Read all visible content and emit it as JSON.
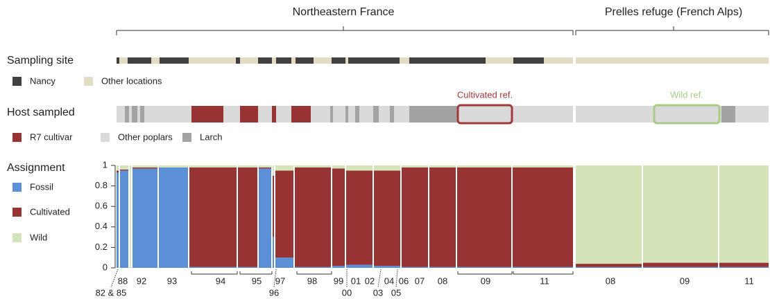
{
  "chart_data": {
    "type": "structure",
    "regions": [
      "Northeastern France",
      "Prelles refuge (French Alps)"
    ],
    "site_track": {
      "label": "Sampling site",
      "categories": [
        {
          "name": "Nancy",
          "color": "#404040"
        },
        {
          "name": "Other locations",
          "color": "#e2dcc5"
        }
      ],
      "segments": [
        [
          {
            "cat": 0,
            "n": 2
          },
          {
            "cat": 1,
            "n": 6
          },
          {
            "cat": 0,
            "n": 17
          },
          {
            "cat": 1,
            "n": 6
          },
          {
            "cat": 0,
            "n": 21
          },
          {
            "cat": 1,
            "n": 34
          },
          {
            "cat": 0,
            "n": 3
          },
          {
            "cat": 1,
            "n": 13
          },
          {
            "cat": 0,
            "n": 10
          },
          {
            "cat": 1,
            "n": 3
          },
          {
            "cat": 0,
            "n": 11
          },
          {
            "cat": 1,
            "n": 3
          },
          {
            "cat": 0,
            "n": 13
          },
          {
            "cat": 1,
            "n": 13
          },
          {
            "cat": 0,
            "n": 10
          },
          {
            "cat": 1,
            "n": 2
          },
          {
            "cat": 0,
            "n": 37
          },
          {
            "cat": 1,
            "n": 7
          },
          {
            "cat": 0,
            "n": 55
          },
          {
            "cat": 1,
            "n": 20
          },
          {
            "cat": 0,
            "n": 22
          },
          {
            "cat": 1,
            "n": 21
          }
        ],
        [
          {
            "cat": 1,
            "n": 139
          }
        ]
      ]
    },
    "host_track": {
      "label": "Host sampled",
      "categories": [
        {
          "name": "R7 cultivar",
          "color": "#973333"
        },
        {
          "name": "Other poplars",
          "color": "#dadada"
        },
        {
          "name": "Larch",
          "color": "#a3a3a3"
        }
      ],
      "segments": [
        [
          {
            "cat": 1,
            "n": 6
          },
          {
            "cat": 2,
            "n": 3
          },
          {
            "cat": 1,
            "n": 2
          },
          {
            "cat": 2,
            "n": 4
          },
          {
            "cat": 1,
            "n": 2
          },
          {
            "cat": 2,
            "n": 3
          },
          {
            "cat": 1,
            "n": 34
          },
          {
            "cat": 0,
            "n": 23
          },
          {
            "cat": 1,
            "n": 12
          },
          {
            "cat": 0,
            "n": 13
          },
          {
            "cat": 1,
            "n": 10
          },
          {
            "cat": 0,
            "n": 3
          },
          {
            "cat": 1,
            "n": 11
          },
          {
            "cat": 0,
            "n": 14
          },
          {
            "cat": 1,
            "n": 14
          },
          {
            "cat": 2,
            "n": 2
          },
          {
            "cat": 1,
            "n": 9
          },
          {
            "cat": 2,
            "n": 2
          },
          {
            "cat": 1,
            "n": 5
          },
          {
            "cat": 2,
            "n": 3
          },
          {
            "cat": 1,
            "n": 10
          },
          {
            "cat": 2,
            "n": 4
          },
          {
            "cat": 1,
            "n": 8
          },
          {
            "cat": 2,
            "n": 3
          },
          {
            "cat": 1,
            "n": 11
          },
          {
            "cat": 2,
            "n": 35
          },
          {
            "cat": 1,
            "n": 83
          }
        ],
        [
          {
            "cat": 1,
            "n": 105
          },
          {
            "cat": 2,
            "n": 10
          },
          {
            "cat": 1,
            "n": 24
          }
        ]
      ],
      "annotations": [
        {
          "text": "Cultivated ref.",
          "color": "#a03a3a"
        },
        {
          "text": "Wild ref.",
          "color": "#a8cc86"
        }
      ]
    },
    "assignment": {
      "label": "Assignment",
      "ylim": [
        0,
        1
      ],
      "yticks": [
        0,
        0.2,
        0.4,
        0.6,
        0.8,
        1
      ],
      "series": [
        {
          "name": "Fossil",
          "color": "#5b8fd6"
        },
        {
          "name": "Cultivated",
          "color": "#973333"
        },
        {
          "name": "Wild",
          "color": "#d5e3b9"
        }
      ],
      "blocks": [
        [
          {
            "n": 2,
            "values": [
              0.93,
              0.02,
              0.05
            ]
          },
          {
            "n": 7,
            "values": [
              0.95,
              0.01,
              0.04
            ]
          },
          {
            "n": 2,
            "values": [
              0,
              0,
              1
            ]
          },
          {
            "n": 19,
            "values": [
              0.97,
              0.01,
              0.02
            ]
          },
          {
            "n": 22,
            "values": [
              0.98,
              0,
              0.02
            ]
          },
          {
            "n": 35,
            "values": [
              0.01,
              0.97,
              0.02
            ]
          },
          {
            "n": 15,
            "values": [
              0.01,
              0.97,
              0.02
            ]
          },
          {
            "n": 10,
            "values": [
              0.97,
              0.01,
              0.02
            ]
          },
          {
            "n": 2,
            "values": [
              0.3,
              0.6,
              0.1
            ]
          },
          {
            "n": 14,
            "values": [
              0.1,
              0.85,
              0.05
            ]
          },
          {
            "n": 27,
            "values": [
              0.01,
              0.97,
              0.02
            ]
          },
          {
            "n": 10,
            "values": [
              0.02,
              0.95,
              0.03
            ]
          },
          {
            "n": 20,
            "values": [
              0.03,
              0.92,
              0.05
            ]
          },
          {
            "n": 20,
            "values": [
              0.02,
              0.93,
              0.05
            ]
          },
          {
            "n": 20,
            "values": [
              0.01,
              0.97,
              0.02
            ]
          },
          {
            "n": 20,
            "values": [
              0.01,
              0.97,
              0.02
            ]
          },
          {
            "n": 40,
            "values": [
              0.01,
              0.97,
              0.02
            ]
          },
          {
            "n": 44,
            "values": [
              0.01,
              0.97,
              0.02
            ]
          }
        ],
        [
          {
            "n": 48,
            "values": [
              0.01,
              0.03,
              0.96
            ]
          },
          {
            "n": 55,
            "values": [
              0.01,
              0.04,
              0.95
            ]
          },
          {
            "n": 36,
            "values": [
              0.01,
              0.04,
              0.95
            ]
          }
        ]
      ],
      "year_labels": [
        [
          "88",
          "92",
          "93",
          "94",
          "95",
          "97",
          "98",
          "99",
          "01",
          "02",
          "04",
          "06",
          "07",
          "08",
          "09",
          "11",
          "08",
          "09",
          "11"
        ],
        [
          "82 & 85",
          "96",
          "00",
          "03",
          "05"
        ]
      ]
    }
  }
}
